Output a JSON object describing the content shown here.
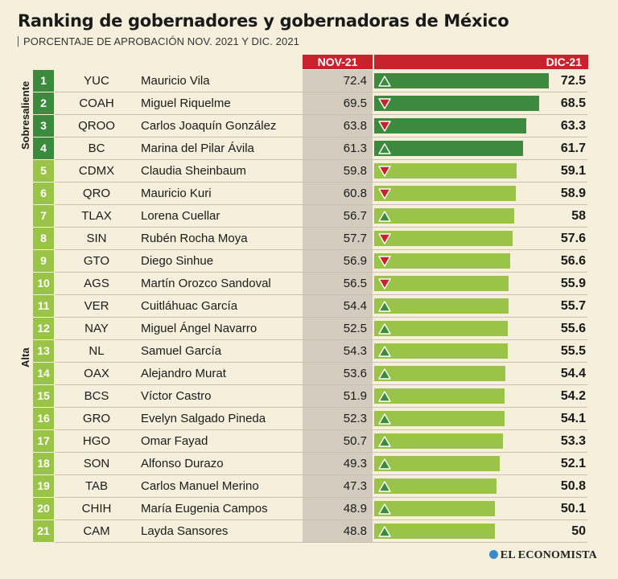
{
  "title": "Ranking de gobernadores y gobernadoras de México",
  "subtitle": "PORCENTAJE DE APROBACIÓN NOV. 2021 Y DIC. 2021",
  "logo_text": "EL ECONOMISTA",
  "colors": {
    "header_red": "#c8222c",
    "sobresaliente_green": "#3b8a3e",
    "alta_green": "#9ac447",
    "up_triangle": "#3b8a3e",
    "down_triangle": "#c8222c",
    "grey_column": "#d3cbbd"
  },
  "chart_data": {
    "type": "bar",
    "title": "Ranking de gobernadores y gobernadoras de México",
    "subtitle": "PORCENTAJE DE APROBACIÓN NOV. 2021 Y DIC. 2021",
    "columns": [
      "NOV-21",
      "DIC-21"
    ],
    "groups": [
      {
        "name": "Sobresaliente",
        "ranks": [
          1,
          4
        ]
      },
      {
        "name": "Alta",
        "ranks": [
          5,
          21
        ]
      }
    ],
    "rows": [
      {
        "rank": "1",
        "state": "YUC",
        "name": "Mauricio Vila",
        "nov": "72.4",
        "dic": "72.5",
        "trend": "up",
        "group": "Sobresaliente"
      },
      {
        "rank": "2",
        "state": "COAH",
        "name": "Miguel Riquelme",
        "nov": "69.5",
        "dic": "68.5",
        "trend": "down",
        "group": "Sobresaliente"
      },
      {
        "rank": "3",
        "state": "QROO",
        "name": "Carlos Joaquín González",
        "nov": "63.8",
        "dic": "63.3",
        "trend": "down",
        "group": "Sobresaliente"
      },
      {
        "rank": "4",
        "state": "BC",
        "name": "Marina del Pilar Ávila",
        "nov": "61.3",
        "dic": "61.7",
        "trend": "up",
        "group": "Sobresaliente"
      },
      {
        "rank": "5",
        "state": "CDMX",
        "name": "Claudia Sheinbaum",
        "nov": "59.8",
        "dic": "59.1",
        "trend": "down",
        "group": "Alta"
      },
      {
        "rank": "6",
        "state": "QRO",
        "name": "Mauricio Kuri",
        "nov": "60.8",
        "dic": "58.9",
        "trend": "down",
        "group": "Alta"
      },
      {
        "rank": "7",
        "state": "TLAX",
        "name": "Lorena Cuellar",
        "nov": "56.7",
        "dic": "58",
        "trend": "up",
        "group": "Alta"
      },
      {
        "rank": "8",
        "state": "SIN",
        "name": "Rubén Rocha Moya",
        "nov": "57.7",
        "dic": "57.6",
        "trend": "down",
        "group": "Alta"
      },
      {
        "rank": "9",
        "state": "GTO",
        "name": "Diego Sinhue",
        "nov": "56.9",
        "dic": "56.6",
        "trend": "down",
        "group": "Alta"
      },
      {
        "rank": "10",
        "state": "AGS",
        "name": "Martín Orozco Sandoval",
        "nov": "56.5",
        "dic": "55.9",
        "trend": "down",
        "group": "Alta"
      },
      {
        "rank": "11",
        "state": "VER",
        "name": "Cuitláhuac García",
        "nov": "54.4",
        "dic": "55.7",
        "trend": "up",
        "group": "Alta"
      },
      {
        "rank": "12",
        "state": "NAY",
        "name": "Miguel Ángel Navarro",
        "nov": "52.5",
        "dic": "55.6",
        "trend": "up",
        "group": "Alta"
      },
      {
        "rank": "13",
        "state": "NL",
        "name": "Samuel García",
        "nov": "54.3",
        "dic": "55.5",
        "trend": "up",
        "group": "Alta"
      },
      {
        "rank": "14",
        "state": "OAX",
        "name": "Alejandro Murat",
        "nov": "53.6",
        "dic": "54.4",
        "trend": "up",
        "group": "Alta"
      },
      {
        "rank": "15",
        "state": "BCS",
        "name": "Víctor Castro",
        "nov": "51.9",
        "dic": "54.2",
        "trend": "up",
        "group": "Alta"
      },
      {
        "rank": "16",
        "state": "GRO",
        "name": "Evelyn Salgado Pineda",
        "nov": "52.3",
        "dic": "54.1",
        "trend": "up",
        "group": "Alta"
      },
      {
        "rank": "17",
        "state": "HGO",
        "name": "Omar Fayad",
        "nov": "50.7",
        "dic": "53.3",
        "trend": "up",
        "group": "Alta"
      },
      {
        "rank": "18",
        "state": "SON",
        "name": "Alfonso Durazo",
        "nov": "49.3",
        "dic": "52.1",
        "trend": "up",
        "group": "Alta"
      },
      {
        "rank": "19",
        "state": "TAB",
        "name": "Carlos Manuel Merino",
        "nov": "47.3",
        "dic": "50.8",
        "trend": "up",
        "group": "Alta"
      },
      {
        "rank": "20",
        "state": "CHIH",
        "name": "María Eugenia Campos",
        "nov": "48.9",
        "dic": "50.1",
        "trend": "up",
        "group": "Alta"
      },
      {
        "rank": "21",
        "state": "CAM",
        "name": "Layda Sansores",
        "nov": "48.8",
        "dic": "50",
        "trend": "up",
        "group": "Alta"
      }
    ]
  }
}
